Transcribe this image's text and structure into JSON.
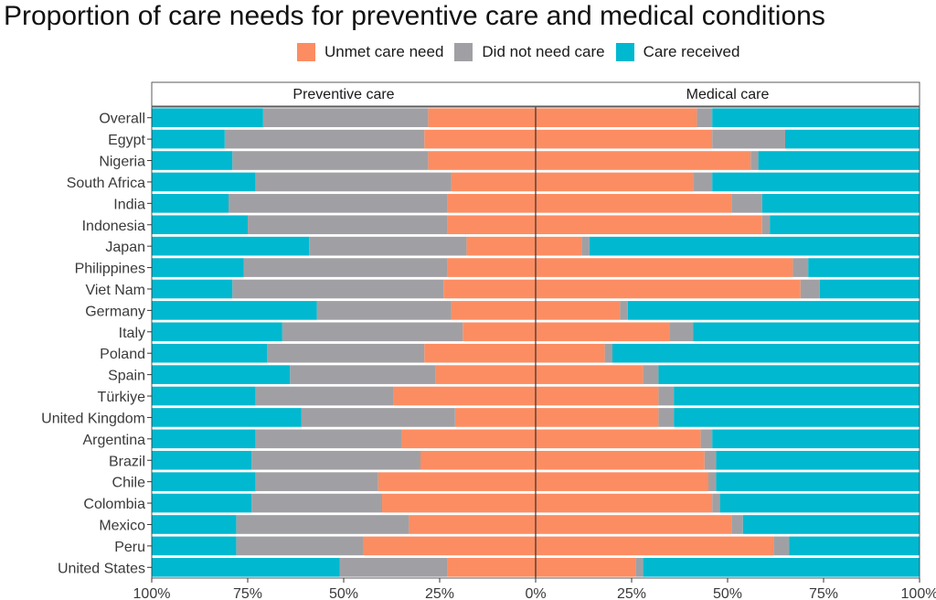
{
  "chart_data": {
    "type": "bar",
    "orientation": "horizontal-diverging-stacked",
    "title": "Proportion of care needs for preventive care and medical conditions",
    "legend": {
      "placement": "top",
      "items": [
        {
          "name": "Unmet care need",
          "color": "#FC8D62"
        },
        {
          "name": "Did not need care",
          "color": "#A0A0A4"
        },
        {
          "name": "Care received",
          "color": "#00B8CF"
        }
      ]
    },
    "panels": [
      {
        "label": "Preventive care",
        "direction": "left"
      },
      {
        "label": "Medical care",
        "direction": "right"
      }
    ],
    "categories": [
      "Overall",
      "Egypt",
      "Nigeria",
      "South Africa",
      "India",
      "Indonesia",
      "Japan",
      "Philippines",
      "Viet Nam",
      "Germany",
      "Italy",
      "Poland",
      "Spain",
      "Türkiye",
      "United Kingdom",
      "Argentina",
      "Brazil",
      "Chile",
      "Colombia",
      "Mexico",
      "Peru",
      "United States"
    ],
    "preventive": {
      "unmet": [
        28,
        29,
        28,
        22,
        23,
        23,
        18,
        23,
        24,
        22,
        19,
        29,
        26,
        37,
        21,
        35,
        30,
        41,
        40,
        33,
        45,
        23
      ],
      "no_need": [
        43,
        52,
        51,
        51,
        57,
        52,
        41,
        53,
        55,
        35,
        47,
        41,
        38,
        36,
        40,
        38,
        44,
        32,
        34,
        45,
        33,
        28
      ],
      "received": [
        29,
        19,
        21,
        27,
        20,
        25,
        41,
        24,
        21,
        43,
        34,
        30,
        36,
        27,
        39,
        27,
        26,
        27,
        26,
        22,
        22,
        49
      ]
    },
    "medical": {
      "unmet": [
        42,
        46,
        56,
        41,
        51,
        59,
        12,
        67,
        69,
        22,
        35,
        18,
        28,
        32,
        32,
        43,
        44,
        45,
        46,
        51,
        62,
        26
      ],
      "no_need": [
        4,
        19,
        2,
        5,
        8,
        2,
        2,
        4,
        5,
        2,
        6,
        2,
        4,
        4,
        4,
        3,
        3,
        2,
        2,
        3,
        4,
        2
      ],
      "received": [
        54,
        35,
        42,
        54,
        41,
        39,
        86,
        29,
        26,
        76,
        59,
        80,
        68,
        64,
        64,
        54,
        53,
        53,
        52,
        46,
        34,
        72
      ]
    },
    "x_ticks": [
      "100%",
      "75%",
      "50%",
      "25%",
      "0%",
      "25%",
      "50%",
      "75%",
      "100%"
    ],
    "xlim": [
      -100,
      100
    ],
    "ylabel": "",
    "xlabel": ""
  }
}
